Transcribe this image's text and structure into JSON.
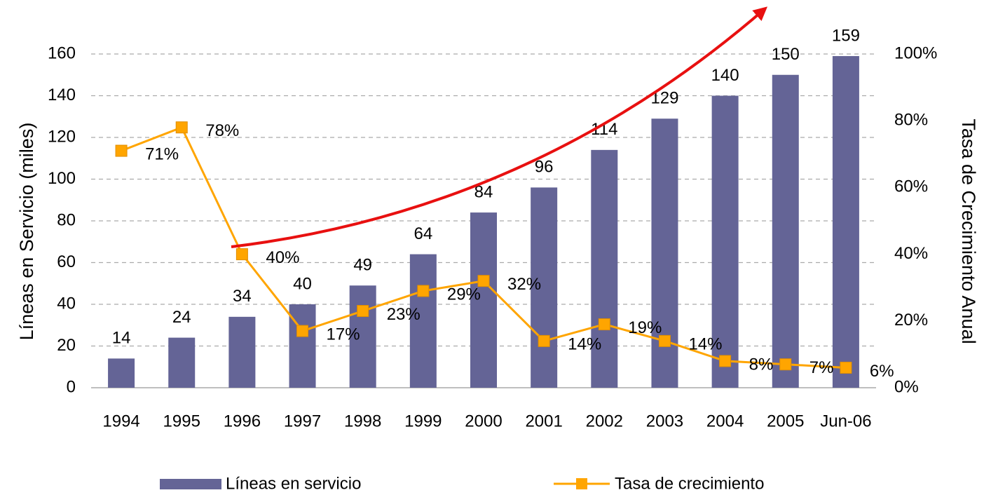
{
  "chart_data": {
    "type": "bar_line",
    "categories": [
      "1994",
      "1995",
      "1996",
      "1997",
      "1998",
      "1999",
      "2000",
      "2001",
      "2002",
      "2003",
      "2004",
      "2005",
      "Jun-06"
    ],
    "series": [
      {
        "name": "Líneas en servicio",
        "type": "bar",
        "color": "#646496",
        "values": [
          14,
          24,
          34,
          40,
          49,
          64,
          84,
          96,
          114,
          129,
          140,
          150,
          159
        ]
      },
      {
        "name": "Tasa de crecimiento",
        "type": "line",
        "axis": "y2",
        "color": "#ffa500",
        "values": [
          71,
          78,
          40,
          17,
          23,
          29,
          32,
          14,
          19,
          14,
          8,
          7,
          6
        ],
        "value_labels": [
          "71%",
          "78%",
          "40%",
          "17%",
          "23%",
          "29%",
          "32%",
          "14%",
          "19%",
          "14%",
          "8%",
          "7%",
          "6%"
        ]
      }
    ],
    "y_label": "Líneas en Servicio (miles)",
    "y2_label": "Tasa de Crecimiento Anual",
    "ylim": [
      0,
      160
    ],
    "yticks": [
      0,
      20,
      40,
      60,
      80,
      100,
      120,
      140,
      160
    ],
    "y2lim": [
      0,
      100
    ],
    "y2ticks": [
      {
        "value": 0,
        "label": "0%"
      },
      {
        "value": 20,
        "label": "20%"
      },
      {
        "value": 40,
        "label": "40%"
      },
      {
        "value": 60,
        "label": "60%"
      },
      {
        "value": 80,
        "label": "80%"
      },
      {
        "value": 100,
        "label": "100%"
      }
    ],
    "grid": true,
    "legend": "bottom"
  }
}
